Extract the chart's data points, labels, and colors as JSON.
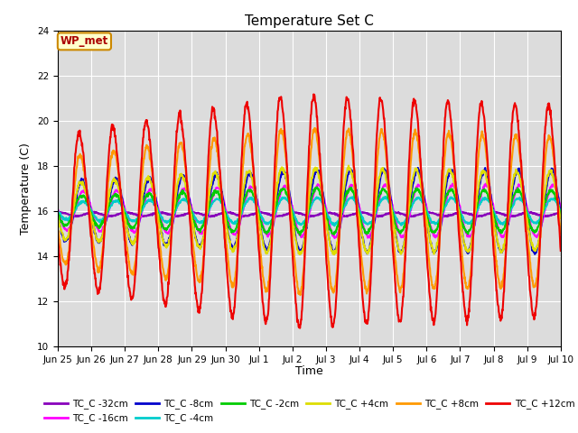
{
  "title": "Temperature Set C",
  "xlabel": "Time",
  "ylabel": "Temperature (C)",
  "ylim": [
    10,
    24
  ],
  "yticks": [
    10,
    12,
    14,
    16,
    18,
    20,
    22,
    24
  ],
  "bg_color": "#dcdcdc",
  "series": [
    {
      "label": "TC_C -32cm",
      "color": "#8800bb",
      "lw": 1.5,
      "depth": -32
    },
    {
      "label": "TC_C -16cm",
      "color": "#ff00ff",
      "lw": 1.5,
      "depth": -16
    },
    {
      "label": "TC_C -8cm",
      "color": "#0000cc",
      "lw": 1.5,
      "depth": -8
    },
    {
      "label": "TC_C -4cm",
      "color": "#00cccc",
      "lw": 1.5,
      "depth": -4
    },
    {
      "label": "TC_C -2cm",
      "color": "#00cc00",
      "lw": 1.5,
      "depth": -2
    },
    {
      "label": "TC_C +4cm",
      "color": "#dddd00",
      "lw": 1.5,
      "depth": 4
    },
    {
      "label": "TC_C +8cm",
      "color": "#ff9900",
      "lw": 1.5,
      "depth": 8
    },
    {
      "label": "TC_C +12cm",
      "color": "#ee0000",
      "lw": 1.5,
      "depth": 12
    }
  ],
  "n_days": 15,
  "pts_per_day": 96,
  "annotation_text": "WP_met",
  "xtick_labels": [
    "Jun 25",
    "Jun 26",
    "Jun 27",
    "Jun 28",
    "Jun 29",
    "Jun 30",
    "Jul 1",
    "Jul 2",
    "Jul 3",
    "Jul 4",
    "Jul 5",
    "Jul 6",
    "Jul 7",
    "Jul 8",
    "Jul 9",
    "Jul 10"
  ]
}
